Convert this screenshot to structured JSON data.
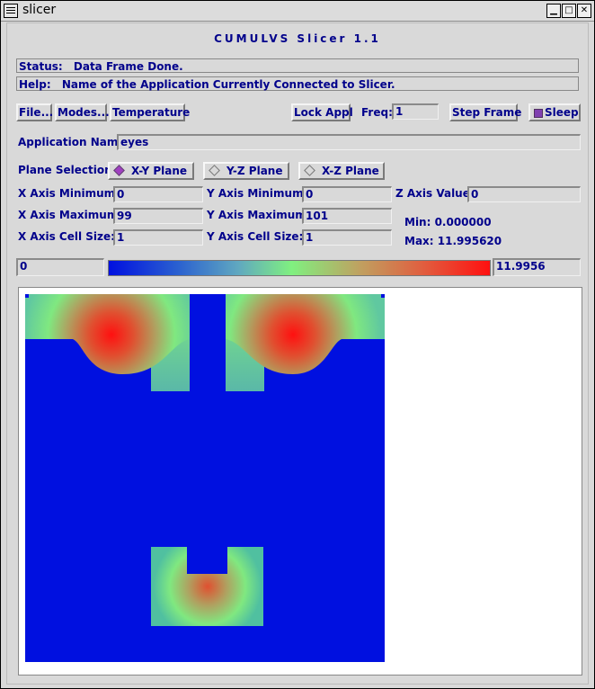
{
  "window": {
    "title": "slicer",
    "buttons": {
      "minimize": "▁",
      "maximize": "□",
      "close": "✕"
    }
  },
  "app": {
    "heading": "CUMULVS Slicer 1.1"
  },
  "status": {
    "label": "Status:",
    "text": "Data Frame Done."
  },
  "help": {
    "label": "Help:",
    "text": "Name of the Application Currently Connected to Slicer."
  },
  "toolbar": {
    "file_label": "File...",
    "modes_label": "Modes...",
    "field_label": "Temperature",
    "lock_label": "Lock Appl",
    "freq_label": "Freq:",
    "freq_value": "1",
    "step_label": "Step Frame",
    "sleep_label": "Sleep",
    "sleep_checked": true
  },
  "application": {
    "label": "Application Name:",
    "value": "eyes"
  },
  "plane": {
    "label": "Plane Selection:",
    "options": [
      "X-Y Plane",
      "Y-Z Plane",
      "X-Z Plane"
    ],
    "selected": "X-Y Plane"
  },
  "axes": {
    "x_min_label": "X Axis Minimum:",
    "x_min": "0",
    "x_max_label": "X Axis Maximum:",
    "x_max": "99",
    "x_cell_label": "X Axis Cell Size:",
    "x_cell": "1",
    "y_min_label": "Y Axis Minimum:",
    "y_min": "0",
    "y_max_label": "Y Axis Maximum:",
    "y_max": "101",
    "y_cell_label": "Y Axis Cell Size:",
    "y_cell": "1",
    "z_value_label": "Z Axis Value:",
    "z_value": "0"
  },
  "range": {
    "min_text": "Min: 0.000000",
    "max_text": "Max: 11.995620"
  },
  "colorbar": {
    "min": "0",
    "max": "11.9956",
    "colors": [
      "#0010e0",
      "#60a8c0",
      "#80f080",
      "#e06040",
      "#ff1010"
    ]
  },
  "colors": {
    "text": "#00008b",
    "background": "#d9d9d9",
    "field_low": "#0010e0",
    "field_high": "#ff1010"
  }
}
